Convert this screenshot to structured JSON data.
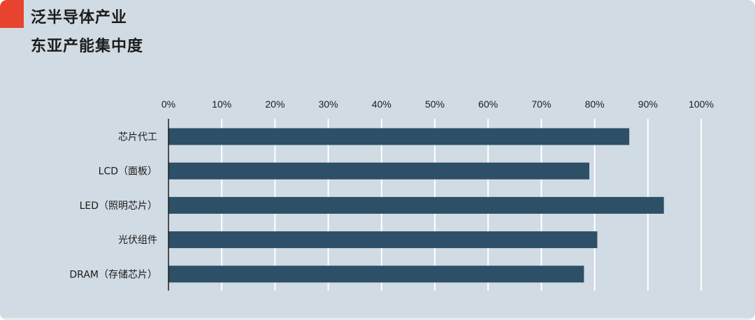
{
  "header": {
    "title_line1": "泛半导体产业",
    "title_line2": "东亚产能集中度"
  },
  "colors": {
    "background": "#d1dbe3",
    "accent": "#e8432e",
    "bar": "#2d4f67",
    "grid": "#ffffff",
    "axis": "#1c1c1c",
    "text": "#1c1c1c"
  },
  "chart_data": {
    "type": "bar",
    "orientation": "horizontal",
    "categories": [
      "芯片代工",
      "LCD（面板）",
      "LED（照明芯片）",
      "光伏组件",
      "DRAM（存储芯片）"
    ],
    "values": [
      86.5,
      79,
      93,
      80.5,
      78
    ],
    "value_unit": "%",
    "xlim": [
      0,
      100
    ],
    "x_ticks": [
      0,
      10,
      20,
      30,
      40,
      50,
      60,
      70,
      80,
      90,
      100
    ],
    "x_tick_labels": [
      "0%",
      "10%",
      "20%",
      "30%",
      "40%",
      "50%",
      "60%",
      "70%",
      "80%",
      "90%",
      "100%"
    ],
    "x_axis_position": "top",
    "grid": true,
    "legend": "none"
  }
}
